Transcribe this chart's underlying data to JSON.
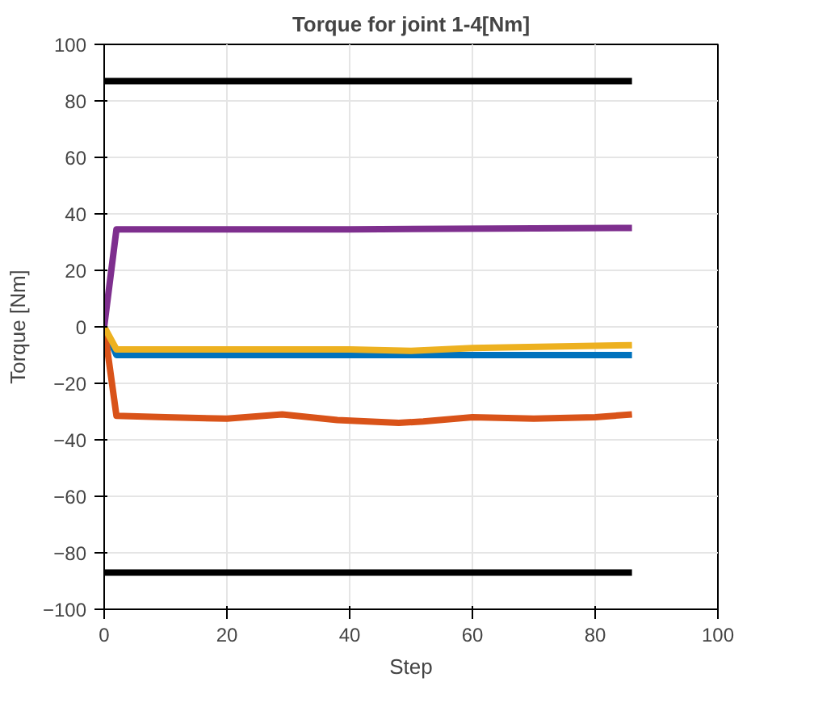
{
  "chart_data": {
    "type": "line",
    "title": "Torque for joint 1-4[Nm]",
    "xlabel": "Step",
    "ylabel": "Torque [Nm]",
    "xlim": [
      0,
      100
    ],
    "ylim": [
      -100,
      100
    ],
    "xticks": [
      0,
      20,
      40,
      60,
      80,
      100
    ],
    "yticks": [
      -100,
      -80,
      -60,
      -40,
      -20,
      0,
      20,
      40,
      60,
      80,
      100
    ],
    "grid": true,
    "line_style": "solid",
    "marker": "none",
    "series": [
      {
        "color": "#0072bd",
        "x": [
          0,
          2,
          20,
          40,
          60,
          86
        ],
        "values": [
          0,
          -10,
          -10,
          -10,
          -10,
          -10
        ]
      },
      {
        "color": "#d95319",
        "x": [
          0,
          2,
          10,
          20,
          29,
          38,
          48,
          52,
          60,
          70,
          80,
          86
        ],
        "values": [
          0,
          -31.5,
          -32,
          -32.5,
          -31,
          -33,
          -34,
          -33.5,
          -32,
          -32.5,
          -32,
          -31
        ]
      },
      {
        "color": "#edb120",
        "x": [
          0,
          2,
          20,
          40,
          50,
          60,
          86
        ],
        "values": [
          0,
          -8,
          -8,
          -8,
          -8.5,
          -7.5,
          -6.5
        ]
      },
      {
        "color": "#7e2f8e",
        "x": [
          0,
          2,
          40,
          86
        ],
        "values": [
          0,
          34.5,
          34.5,
          35
        ]
      }
    ],
    "ref_lines": [
      {
        "axis": "y",
        "value": 87,
        "color": "#000000"
      },
      {
        "axis": "y",
        "value": -87,
        "color": "#000000"
      }
    ]
  }
}
